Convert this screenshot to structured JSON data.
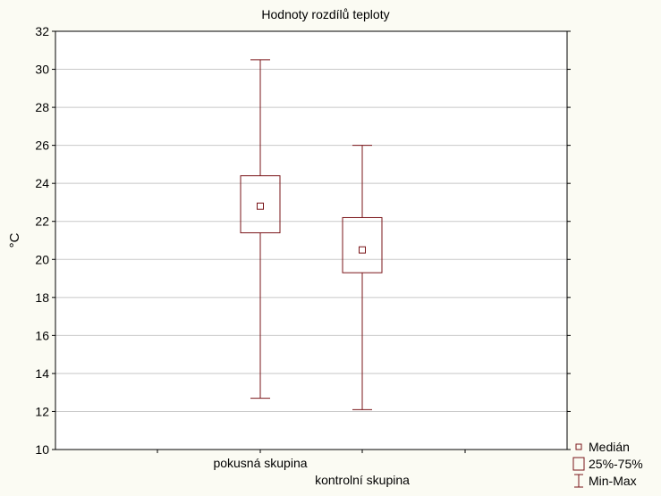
{
  "chart_data": {
    "type": "box",
    "title": "Hodnoty rozdílů teploty",
    "xlabel": "",
    "ylabel": "°C",
    "ylim": [
      10,
      32
    ],
    "yticks": [
      10,
      12,
      14,
      16,
      18,
      20,
      22,
      24,
      26,
      28,
      30,
      32
    ],
    "grid": true,
    "legend_position": "bottom-right",
    "categories": [
      "pokusná skupina",
      "kontrolní skupina"
    ],
    "boxes": [
      {
        "category": "pokusná skupina",
        "min": 12.7,
        "q1": 21.4,
        "median": 22.8,
        "q3": 24.4,
        "max": 30.5
      },
      {
        "category": "kontrolní skupina",
        "min": 12.1,
        "q1": 19.3,
        "median": 20.5,
        "q3": 22.2,
        "max": 26.0
      }
    ],
    "legend": [
      {
        "label": "Medián",
        "symbol": "median"
      },
      {
        "label": "25%-75%",
        "symbol": "box"
      },
      {
        "label": "Min-Max",
        "symbol": "whisker"
      }
    ],
    "colors": {
      "box": "#7a1418",
      "background": "#fbfbf3",
      "plot_area": "#ffffff",
      "grid": "#c8c8c8"
    }
  }
}
